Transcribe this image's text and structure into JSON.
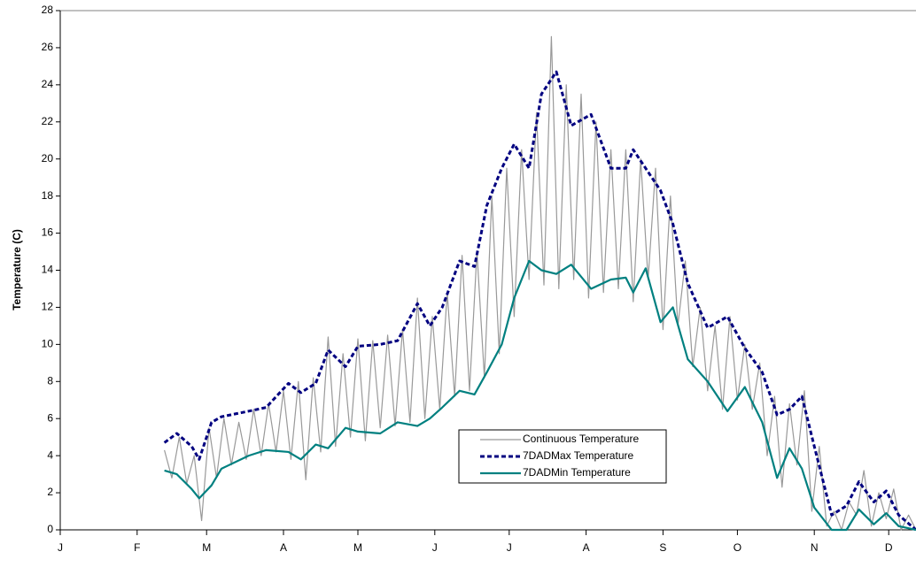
{
  "chart_data": {
    "type": "line",
    "y_label": "Temperature (C)",
    "x": [
      42,
      47,
      53,
      56,
      61,
      65,
      76,
      83,
      92,
      97,
      103,
      108,
      115,
      120,
      129,
      136,
      144,
      149,
      154,
      161,
      167,
      172,
      178,
      183,
      189,
      194,
      200,
      206,
      214,
      222,
      228,
      231,
      236,
      242,
      247,
      253,
      261,
      269,
      276,
      283,
      289,
      294,
      299,
      304,
      311,
      317,
      322,
      328,
      333,
      338,
      345
    ],
    "xlim": [
      0,
      345
    ],
    "xticks": [
      {
        "value": 0,
        "label": "J"
      },
      {
        "value": 31,
        "label": "F"
      },
      {
        "value": 59,
        "label": "M"
      },
      {
        "value": 90,
        "label": "A"
      },
      {
        "value": 120,
        "label": "M"
      },
      {
        "value": 151,
        "label": "J"
      },
      {
        "value": 181,
        "label": "J"
      },
      {
        "value": 212,
        "label": "A"
      },
      {
        "value": 243,
        "label": "S"
      },
      {
        "value": 273,
        "label": "O"
      },
      {
        "value": 304,
        "label": "N"
      },
      {
        "value": 334,
        "label": "D"
      }
    ],
    "ylim": [
      0,
      28
    ],
    "yticks": [
      0,
      2,
      4,
      6,
      8,
      10,
      12,
      14,
      16,
      18,
      20,
      22,
      24,
      26,
      28
    ],
    "grid": false,
    "legend": "lower center",
    "series": [
      {
        "name": "Continuous Temperature",
        "color": "#999999",
        "line_style": "solid",
        "x": [
          42,
          45,
          48,
          51,
          54,
          57,
          60,
          63,
          66,
          69,
          72,
          75,
          78,
          81,
          84,
          87,
          90,
          93,
          96,
          99,
          102,
          105,
          108,
          111,
          114,
          117,
          120,
          123,
          126,
          129,
          132,
          135,
          138,
          141,
          144,
          147,
          150,
          153,
          156,
          159,
          162,
          165,
          168,
          171,
          174,
          177,
          180,
          183,
          186,
          189,
          192,
          195,
          198,
          201,
          204,
          207,
          210,
          213,
          216,
          219,
          222,
          225,
          228,
          231,
          234,
          237,
          240,
          243,
          246,
          249,
          252,
          255,
          258,
          261,
          264,
          267,
          270,
          273,
          276,
          279,
          282,
          285,
          288,
          291,
          294,
          297,
          300,
          303,
          306,
          309,
          312,
          315,
          318,
          321,
          324,
          327,
          330,
          333,
          336,
          339,
          342,
          345
        ],
        "values": [
          4.3,
          2.8,
          5.0,
          2.5,
          4.0,
          0.5,
          5.5,
          2.8,
          6.0,
          3.5,
          5.8,
          3.8,
          6.5,
          4.0,
          6.8,
          4.2,
          7.5,
          3.8,
          8.0,
          2.7,
          8.2,
          4.2,
          10.4,
          4.5,
          9.5,
          5.0,
          10.3,
          4.8,
          10.2,
          5.5,
          10.5,
          5.6,
          10.8,
          5.8,
          12.5,
          6.0,
          11.5,
          6.5,
          12.8,
          7.2,
          14.8,
          7.5,
          15.0,
          8.2,
          18.0,
          9.5,
          19.5,
          11.5,
          20.5,
          13.5,
          22.5,
          13.2,
          26.6,
          13.0,
          24.0,
          13.5,
          23.5,
          12.5,
          22.0,
          12.8,
          20.5,
          13.0,
          20.5,
          12.3,
          20.0,
          13.5,
          19.5,
          10.8,
          18.0,
          11.0,
          14.5,
          8.8,
          12.0,
          7.5,
          11.0,
          6.5,
          11.5,
          7.0,
          10.0,
          6.5,
          9.0,
          4.0,
          7.2,
          2.3,
          6.8,
          3.5,
          7.5,
          1.0,
          4.5,
          0.2,
          1.0,
          0.0,
          1.5,
          0.8,
          3.2,
          0.2,
          2.0,
          0.6,
          2.2,
          0.0,
          0.8,
          0.0
        ]
      },
      {
        "name": "7DADMax Temperature",
        "color": "#000080",
        "line_style": "dashed",
        "values": [
          4.7,
          5.2,
          4.5,
          3.8,
          5.8,
          6.1,
          6.4,
          6.6,
          7.9,
          7.4,
          7.9,
          9.7,
          8.8,
          9.9,
          10.0,
          10.2,
          12.2,
          11.0,
          12.0,
          14.5,
          14.2,
          17.5,
          19.5,
          20.8,
          19.5,
          23.5,
          24.7,
          21.8,
          22.4,
          19.5,
          19.5,
          20.5,
          19.5,
          18.3,
          16.5,
          13.3,
          10.9,
          11.5,
          9.8,
          8.5,
          6.2,
          6.5,
          7.2,
          4.5,
          0.8,
          1.3,
          2.6,
          1.5,
          2.1,
          0.8,
          0.0
        ]
      },
      {
        "name": "7DADMin Temperature",
        "color": "#008080",
        "line_style": "solid",
        "values": [
          3.2,
          3.0,
          2.2,
          1.7,
          2.4,
          3.3,
          4.0,
          4.3,
          4.2,
          3.8,
          4.6,
          4.4,
          5.5,
          5.3,
          5.2,
          5.8,
          5.6,
          6.0,
          6.6,
          7.5,
          7.3,
          8.5,
          10.0,
          12.5,
          14.5,
          14.0,
          13.8,
          14.3,
          13.0,
          13.5,
          13.6,
          12.8,
          14.1,
          11.2,
          12.0,
          9.2,
          8.0,
          6.4,
          7.7,
          5.8,
          2.8,
          4.4,
          3.3,
          1.2,
          0.0,
          0.0,
          1.1,
          0.3,
          0.9,
          0.2,
          0.0
        ]
      }
    ]
  }
}
